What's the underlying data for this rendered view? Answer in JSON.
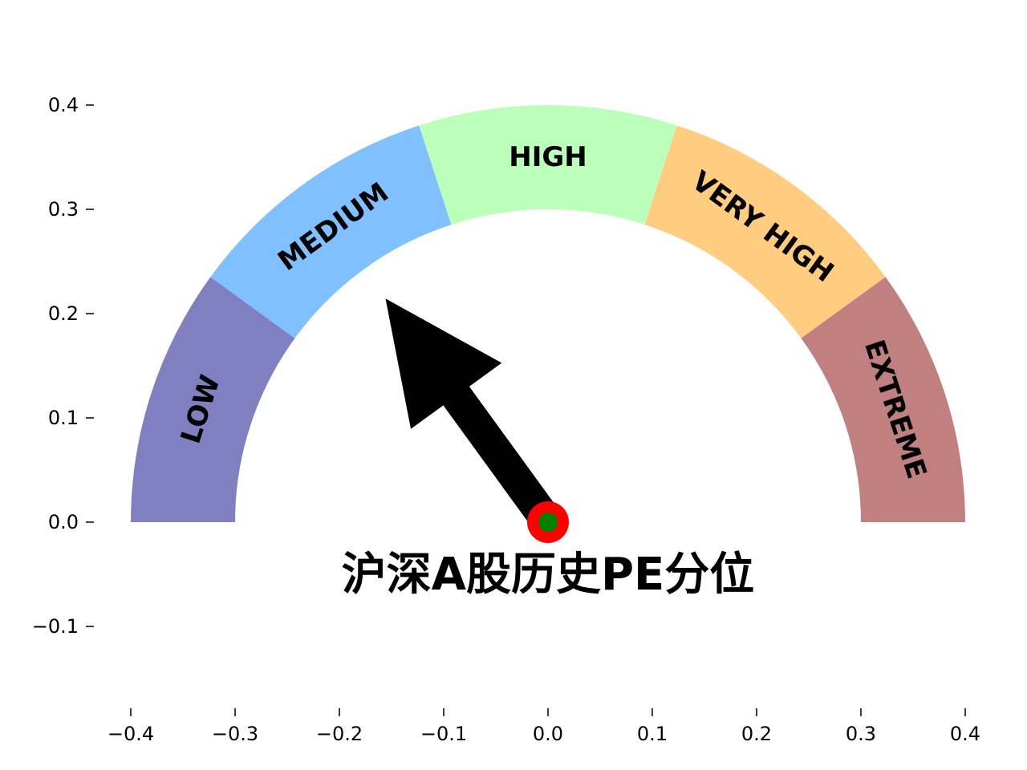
{
  "chart_data": {
    "type": "gauge",
    "title": "沪深A股历史PE分位",
    "xlim": [
      -0.4,
      0.4
    ],
    "ylim": [
      -0.18,
      0.45
    ],
    "x_ticks": [
      -0.4,
      -0.3,
      -0.2,
      -0.1,
      0.0,
      0.1,
      0.2,
      0.3,
      0.4
    ],
    "x_tick_labels": [
      "−0.4",
      "−0.3",
      "−0.2",
      "−0.1",
      "0.0",
      "0.1",
      "0.2",
      "0.3",
      "0.4"
    ],
    "y_ticks": [
      -0.1,
      0.0,
      0.1,
      0.2,
      0.3,
      0.4
    ],
    "y_tick_labels": [
      "−0.1",
      "0.0",
      "0.1",
      "0.2",
      "0.3",
      "0.4"
    ],
    "inner_radius": 0.3,
    "outer_radius": 0.4,
    "bands": [
      {
        "label": "LOW",
        "start_deg": 144,
        "end_deg": 180,
        "color": "#8080c0"
      },
      {
        "label": "MEDIUM",
        "start_deg": 108,
        "end_deg": 144,
        "color": "#80c0ff"
      },
      {
        "label": "HIGH",
        "start_deg": 72,
        "end_deg": 108,
        "color": "#bbffbb"
      },
      {
        "label": "VERY HIGH",
        "start_deg": 36,
        "end_deg": 72,
        "color": "#ffcc80"
      },
      {
        "label": "EXTREME",
        "start_deg": 0,
        "end_deg": 36,
        "color": "#c08080"
      }
    ],
    "needle": {
      "angle_deg": 126,
      "length": 0.265,
      "color": "#000000"
    },
    "hub": {
      "outer_color": "#ff0000",
      "inner_color": "#008000"
    }
  }
}
